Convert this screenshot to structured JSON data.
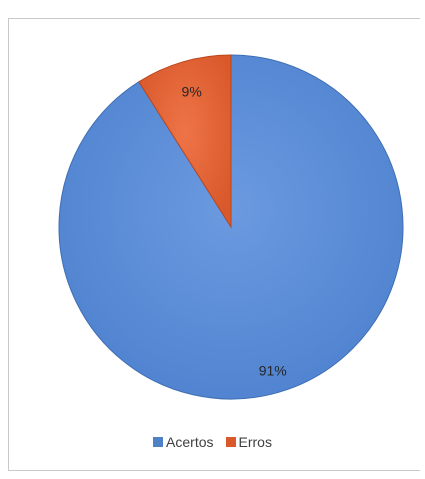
{
  "chart_data": {
    "type": "pie",
    "categories": [
      "Acertos",
      "Erros"
    ],
    "values": [
      91,
      9
    ],
    "labels": [
      "91%",
      "9%"
    ],
    "colors": [
      "#5b8ed4",
      "#e0653a"
    ],
    "edge_colors": [
      "#3e6fb3",
      "#b9471f"
    ],
    "legend_position": "bottom",
    "title": ""
  },
  "legend": {
    "items": [
      {
        "label": "Acertos",
        "color": "#4f81c7"
      },
      {
        "label": "Erros",
        "color": "#d9592b"
      }
    ]
  }
}
